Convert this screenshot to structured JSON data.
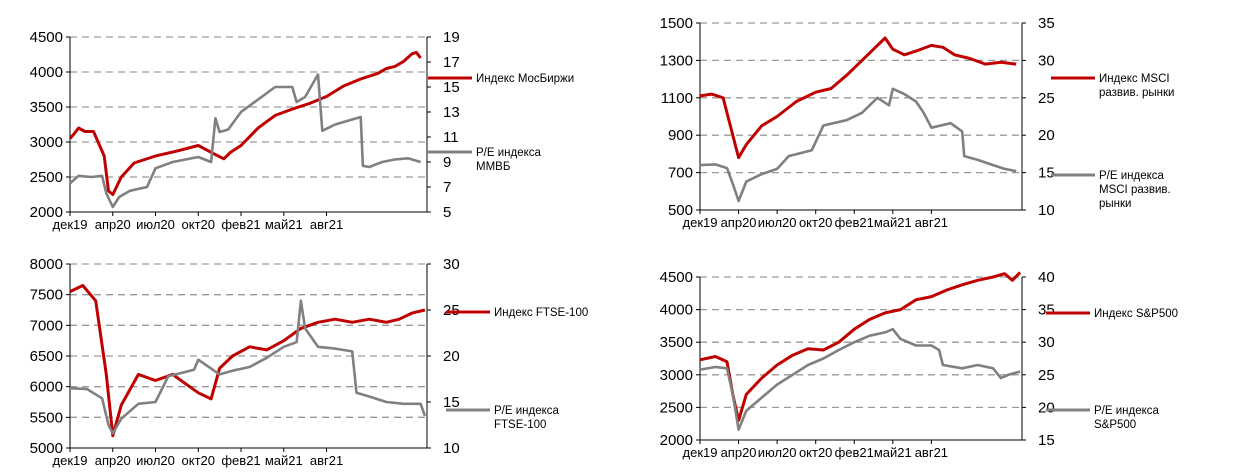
{
  "colors": {
    "index": "#c00000",
    "pe": "#808080",
    "grid": "#9a9a9a"
  },
  "chart_data": [
    {
      "type": "line",
      "x": [
        "дек19",
        "апр20",
        "июл20",
        "окт20",
        "фев21",
        "май21",
        "авг21"
      ],
      "ylim_left": [
        2000,
        4500
      ],
      "yticks_left": [
        "2000",
        "2500",
        "3000",
        "3500",
        "4000",
        "4500"
      ],
      "ylim_right": [
        5,
        19
      ],
      "yticks_right": [
        "5",
        "7",
        "9",
        "11",
        "13",
        "15",
        "17",
        "19"
      ],
      "grid": true,
      "legend": "right",
      "series": [
        {
          "name": "Индекс МосБиржи",
          "axis": "left",
          "color": "index",
          "values": [
            [
              0,
              3050
            ],
            [
              0.1,
              3120
            ],
            [
              0.2,
              3200
            ],
            [
              0.35,
              3150
            ],
            [
              0.55,
              3150
            ],
            [
              0.8,
              2800
            ],
            [
              0.9,
              2300
            ],
            [
              1.0,
              2250
            ],
            [
              1.2,
              2500
            ],
            [
              1.5,
              2700
            ],
            [
              2.0,
              2800
            ],
            [
              2.5,
              2870
            ],
            [
              3.0,
              2950
            ],
            [
              3.4,
              2820
            ],
            [
              3.6,
              2760
            ],
            [
              3.75,
              2850
            ],
            [
              4.0,
              2950
            ],
            [
              4.4,
              3200
            ],
            [
              4.8,
              3380
            ],
            [
              5.2,
              3470
            ],
            [
              5.6,
              3550
            ],
            [
              6.0,
              3650
            ],
            [
              6.4,
              3800
            ],
            [
              6.8,
              3900
            ],
            [
              7.2,
              3980
            ],
            [
              7.4,
              4050
            ],
            [
              7.6,
              4080
            ],
            [
              7.8,
              4150
            ],
            [
              8.0,
              4260
            ],
            [
              8.1,
              4280
            ],
            [
              8.2,
              4200
            ]
          ]
        },
        {
          "name": "P/E индекса ММВБ",
          "axis": "right",
          "color": "pe",
          "values": [
            [
              0,
              7.3
            ],
            [
              0.2,
              7.9
            ],
            [
              0.5,
              7.8
            ],
            [
              0.75,
              7.9
            ],
            [
              0.85,
              6.5
            ],
            [
              1.0,
              5.4
            ],
            [
              1.15,
              6.2
            ],
            [
              1.4,
              6.7
            ],
            [
              1.8,
              7.0
            ],
            [
              2.0,
              8.5
            ],
            [
              2.4,
              9.0
            ],
            [
              3.0,
              9.4
            ],
            [
              3.3,
              9.0
            ],
            [
              3.4,
              12.5
            ],
            [
              3.5,
              11.4
            ],
            [
              3.7,
              11.6
            ],
            [
              4.0,
              13.0
            ],
            [
              4.4,
              14.0
            ],
            [
              4.8,
              15.0
            ],
            [
              5.2,
              15.0
            ],
            [
              5.3,
              13.8
            ],
            [
              5.5,
              14.2
            ],
            [
              5.8,
              16.0
            ],
            [
              5.9,
              11.5
            ],
            [
              6.2,
              12.0
            ],
            [
              6.5,
              12.3
            ],
            [
              6.8,
              12.6
            ],
            [
              6.85,
              8.7
            ],
            [
              7.0,
              8.6
            ],
            [
              7.3,
              9.0
            ],
            [
              7.6,
              9.2
            ],
            [
              7.9,
              9.3
            ],
            [
              8.2,
              9.0
            ]
          ]
        }
      ]
    },
    {
      "type": "line",
      "x": [
        "дек19",
        "апр20",
        "июл20",
        "окт20",
        "фев21",
        "май21",
        "авг21"
      ],
      "ylim_left": [
        500,
        1500
      ],
      "yticks_left": [
        "500",
        "700",
        "900",
        "1100",
        "1300",
        "1500"
      ],
      "ylim_right": [
        10,
        35
      ],
      "yticks_right": [
        "10",
        "15",
        "20",
        "25",
        "30",
        "35"
      ],
      "grid": true,
      "legend": "right",
      "series": [
        {
          "name": "Индекс MSCI развив. рынки",
          "axis": "left",
          "color": "index",
          "values": [
            [
              0,
              1110
            ],
            [
              0.3,
              1120
            ],
            [
              0.6,
              1100
            ],
            [
              0.85,
              900
            ],
            [
              1.0,
              780
            ],
            [
              1.2,
              850
            ],
            [
              1.6,
              950
            ],
            [
              2.0,
              1000
            ],
            [
              2.5,
              1080
            ],
            [
              3.0,
              1130
            ],
            [
              3.4,
              1150
            ],
            [
              3.8,
              1220
            ],
            [
              4.2,
              1300
            ],
            [
              4.6,
              1380
            ],
            [
              4.8,
              1420
            ],
            [
              5.0,
              1360
            ],
            [
              5.3,
              1330
            ],
            [
              5.6,
              1350
            ],
            [
              6.0,
              1380
            ],
            [
              6.3,
              1370
            ],
            [
              6.6,
              1330
            ],
            [
              7.0,
              1310
            ],
            [
              7.4,
              1280
            ],
            [
              7.8,
              1290
            ],
            [
              8.2,
              1280
            ]
          ]
        },
        {
          "name": "P/E индекса MSCI развив. рынки",
          "axis": "right",
          "color": "pe",
          "values": [
            [
              0,
              16.0
            ],
            [
              0.4,
              16.1
            ],
            [
              0.7,
              15.6
            ],
            [
              0.85,
              13.5
            ],
            [
              1.0,
              11.2
            ],
            [
              1.2,
              13.8
            ],
            [
              1.6,
              14.8
            ],
            [
              2.0,
              15.5
            ],
            [
              2.3,
              17.2
            ],
            [
              2.9,
              18.0
            ],
            [
              3.2,
              21.3
            ],
            [
              3.8,
              22.0
            ],
            [
              4.2,
              23.0
            ],
            [
              4.6,
              25.0
            ],
            [
              4.9,
              24.0
            ],
            [
              5.0,
              26.2
            ],
            [
              5.3,
              25.5
            ],
            [
              5.6,
              24.5
            ],
            [
              5.8,
              23.0
            ],
            [
              6.0,
              21.0
            ],
            [
              6.5,
              21.6
            ],
            [
              6.8,
              20.5
            ],
            [
              6.85,
              17.2
            ],
            [
              7.2,
              16.7
            ],
            [
              7.6,
              16.0
            ],
            [
              7.9,
              15.5
            ],
            [
              8.2,
              15.2
            ]
          ]
        }
      ]
    },
    {
      "type": "line",
      "x": [
        "дек19",
        "апр20",
        "июл20",
        "окт20",
        "фев21",
        "май21",
        "авг21"
      ],
      "ylim_left": [
        5000,
        8000
      ],
      "yticks_left": [
        "5000",
        "5500",
        "6000",
        "6500",
        "7000",
        "7500",
        "8000"
      ],
      "ylim_right": [
        10,
        30
      ],
      "yticks_right": [
        "10",
        "15",
        "20",
        "25",
        "30"
      ],
      "grid": true,
      "legend": "right",
      "series": [
        {
          "name": "Индекс FTSE-100",
          "axis": "left",
          "color": "index",
          "values": [
            [
              0,
              7550
            ],
            [
              0.3,
              7650
            ],
            [
              0.6,
              7400
            ],
            [
              0.85,
              6200
            ],
            [
              1.0,
              5200
            ],
            [
              1.2,
              5700
            ],
            [
              1.6,
              6200
            ],
            [
              2.0,
              6100
            ],
            [
              2.4,
              6200
            ],
            [
              2.8,
              6000
            ],
            [
              3.0,
              5900
            ],
            [
              3.3,
              5800
            ],
            [
              3.5,
              6300
            ],
            [
              3.8,
              6500
            ],
            [
              4.2,
              6650
            ],
            [
              4.6,
              6600
            ],
            [
              5.0,
              6750
            ],
            [
              5.4,
              6950
            ],
            [
              5.8,
              7050
            ],
            [
              6.2,
              7100
            ],
            [
              6.6,
              7050
            ],
            [
              7.0,
              7100
            ],
            [
              7.4,
              7050
            ],
            [
              7.7,
              7100
            ],
            [
              8.0,
              7200
            ],
            [
              8.3,
              7250
            ]
          ]
        },
        {
          "name": "P/E индекса FTSE-100",
          "axis": "right",
          "color": "pe",
          "values": [
            [
              0,
              16.5
            ],
            [
              0.4,
              16.4
            ],
            [
              0.75,
              15.4
            ],
            [
              0.9,
              12.5
            ],
            [
              1.0,
              11.6
            ],
            [
              1.2,
              13.2
            ],
            [
              1.6,
              14.8
            ],
            [
              2.0,
              15.0
            ],
            [
              2.3,
              17.8
            ],
            [
              2.9,
              18.5
            ],
            [
              3.0,
              19.6
            ],
            [
              3.5,
              18.0
            ],
            [
              3.8,
              18.4
            ],
            [
              4.2,
              18.8
            ],
            [
              4.6,
              19.8
            ],
            [
              5.0,
              21.0
            ],
            [
              5.3,
              21.5
            ],
            [
              5.4,
              26.0
            ],
            [
              5.5,
              23.0
            ],
            [
              5.8,
              21.0
            ],
            [
              6.2,
              20.8
            ],
            [
              6.6,
              20.5
            ],
            [
              6.7,
              16.0
            ],
            [
              7.0,
              15.6
            ],
            [
              7.4,
              15.0
            ],
            [
              7.8,
              14.8
            ],
            [
              8.2,
              14.8
            ],
            [
              8.3,
              13.5
            ]
          ]
        }
      ]
    },
    {
      "type": "line",
      "x": [
        "дек19",
        "апр20",
        "июл20",
        "окт20",
        "фев21",
        "май21",
        "авг21"
      ],
      "ylim_left": [
        2000,
        4500
      ],
      "yticks_left": [
        "2000",
        "2500",
        "3000",
        "3500",
        "4000",
        "4500"
      ],
      "ylim_right": [
        15,
        40
      ],
      "yticks_right": [
        "15",
        "20",
        "25",
        "30",
        "35",
        "40"
      ],
      "grid": true,
      "legend": "right",
      "series": [
        {
          "name": "Индекс S&P500",
          "axis": "left",
          "color": "index",
          "values": [
            [
              0,
              3230
            ],
            [
              0.4,
              3280
            ],
            [
              0.7,
              3200
            ],
            [
              0.85,
              2700
            ],
            [
              1.0,
              2300
            ],
            [
              1.2,
              2700
            ],
            [
              1.6,
              2950
            ],
            [
              2.0,
              3150
            ],
            [
              2.4,
              3300
            ],
            [
              2.8,
              3400
            ],
            [
              3.2,
              3380
            ],
            [
              3.6,
              3500
            ],
            [
              4.0,
              3700
            ],
            [
              4.4,
              3850
            ],
            [
              4.8,
              3950
            ],
            [
              5.2,
              4000
            ],
            [
              5.6,
              4150
            ],
            [
              6.0,
              4200
            ],
            [
              6.4,
              4300
            ],
            [
              6.8,
              4380
            ],
            [
              7.2,
              4450
            ],
            [
              7.6,
              4500
            ],
            [
              7.9,
              4550
            ],
            [
              8.1,
              4450
            ],
            [
              8.3,
              4570
            ]
          ]
        },
        {
          "name": "P/E индекса S&P500",
          "axis": "right",
          "color": "pe",
          "values": [
            [
              0,
              25.8
            ],
            [
              0.4,
              26.2
            ],
            [
              0.7,
              26.0
            ],
            [
              0.85,
              22.0
            ],
            [
              1.0,
              16.6
            ],
            [
              1.2,
              19.5
            ],
            [
              1.6,
              21.5
            ],
            [
              2.0,
              23.5
            ],
            [
              2.4,
              25.0
            ],
            [
              2.8,
              26.5
            ],
            [
              3.2,
              27.5
            ],
            [
              3.6,
              28.8
            ],
            [
              4.0,
              30.0
            ],
            [
              4.4,
              31.0
            ],
            [
              4.8,
              31.5
            ],
            [
              5.0,
              32.0
            ],
            [
              5.2,
              30.5
            ],
            [
              5.6,
              29.5
            ],
            [
              6.0,
              29.5
            ],
            [
              6.2,
              28.8
            ],
            [
              6.3,
              26.5
            ],
            [
              6.8,
              26.0
            ],
            [
              7.2,
              26.5
            ],
            [
              7.6,
              26.0
            ],
            [
              7.8,
              24.5
            ],
            [
              8.0,
              25.0
            ],
            [
              8.3,
              25.5
            ]
          ]
        }
      ]
    }
  ]
}
